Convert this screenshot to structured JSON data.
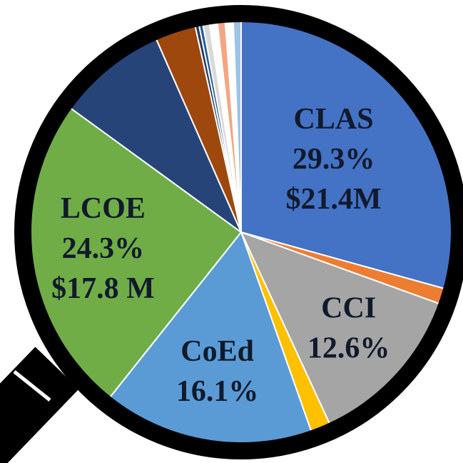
{
  "chart_data": {
    "type": "pie",
    "categories": [
      "CLAS",
      null,
      "CCI",
      null,
      "CoEd",
      "LCOE",
      null,
      null,
      null,
      null,
      null,
      null,
      null,
      null,
      null
    ],
    "values": [
      29.3,
      1.2,
      12.6,
      1.5,
      16.1,
      24.3,
      8.4,
      3.1,
      0.3,
      0.3,
      0.5,
      0.6,
      0.6,
      0.6,
      0.6
    ],
    "value_labels": [
      "29.3%",
      null,
      "12.6%",
      null,
      "16.1%",
      "24.3%",
      null,
      null,
      null,
      null,
      null,
      null,
      null,
      null,
      null
    ],
    "dollar_labels": [
      "$21.4M",
      null,
      null,
      null,
      null,
      "$17.8 M",
      null,
      null,
      null,
      null,
      null,
      null,
      null,
      null,
      null
    ],
    "colors": [
      "#4472c4",
      "#ed7d31",
      "#a5a5a5",
      "#ffc000",
      "#5b9bd5",
      "#70ad47",
      "#264478",
      "#9e480e",
      "#1f3864",
      "#255e91",
      "#d9d9d9",
      "#ffffff",
      "#f4a582",
      "#ffffff",
      "#9dc3e6"
    ]
  }
}
